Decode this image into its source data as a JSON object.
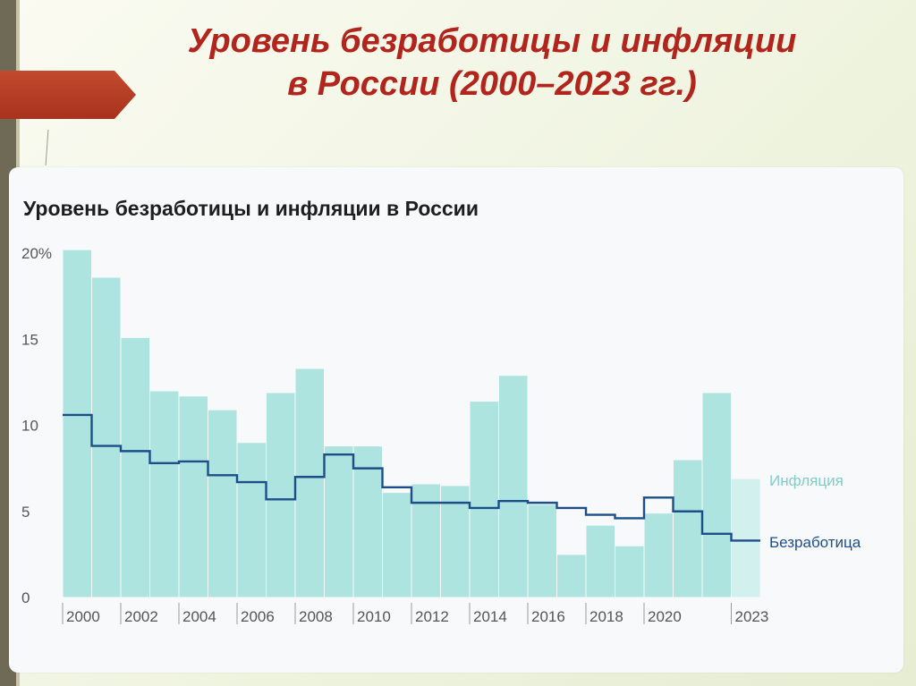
{
  "slide": {
    "title_line1": "Уровень безработицы и инфляции",
    "title_line2": "в России (2000–2023 гг.)",
    "accent_color": "#b2251c"
  },
  "chart_data": {
    "type": "bar",
    "title": "Уровень безработицы и инфляции в России",
    "x": [
      2000,
      2001,
      2002,
      2003,
      2004,
      2005,
      2006,
      2007,
      2008,
      2009,
      2010,
      2011,
      2012,
      2013,
      2014,
      2015,
      2016,
      2017,
      2018,
      2019,
      2020,
      2021,
      2022,
      2023
    ],
    "x_tick_labels": [
      "2000",
      "2002",
      "2004",
      "2006",
      "2008",
      "2010",
      "2012",
      "2014",
      "2016",
      "2018",
      "2020",
      "2023"
    ],
    "y_tick_labels": [
      "20%",
      "15",
      "10",
      "5",
      "0"
    ],
    "ylim": [
      0,
      20
    ],
    "series": [
      {
        "name": "Инфляция",
        "kind": "bar",
        "color": "#aee4e0",
        "values": [
          20.2,
          18.6,
          15.1,
          12.0,
          11.7,
          10.9,
          9.0,
          11.9,
          13.3,
          8.8,
          8.8,
          6.1,
          6.6,
          6.5,
          11.4,
          12.9,
          5.4,
          2.5,
          4.2,
          3.0,
          4.9,
          8.0,
          11.9,
          6.9
        ]
      },
      {
        "name": "Безработица",
        "kind": "step-line",
        "color": "#1c4f8a",
        "values": [
          10.6,
          8.8,
          8.5,
          7.8,
          7.9,
          7.1,
          6.7,
          5.7,
          7.0,
          8.3,
          7.5,
          6.4,
          5.5,
          5.5,
          5.2,
          5.6,
          5.5,
          5.2,
          4.8,
          4.6,
          5.8,
          5.0,
          3.7,
          3.3
        ]
      }
    ],
    "last_bar_color": "#d2f0ed",
    "grid": false,
    "legend_placement": "right, inline labels"
  }
}
